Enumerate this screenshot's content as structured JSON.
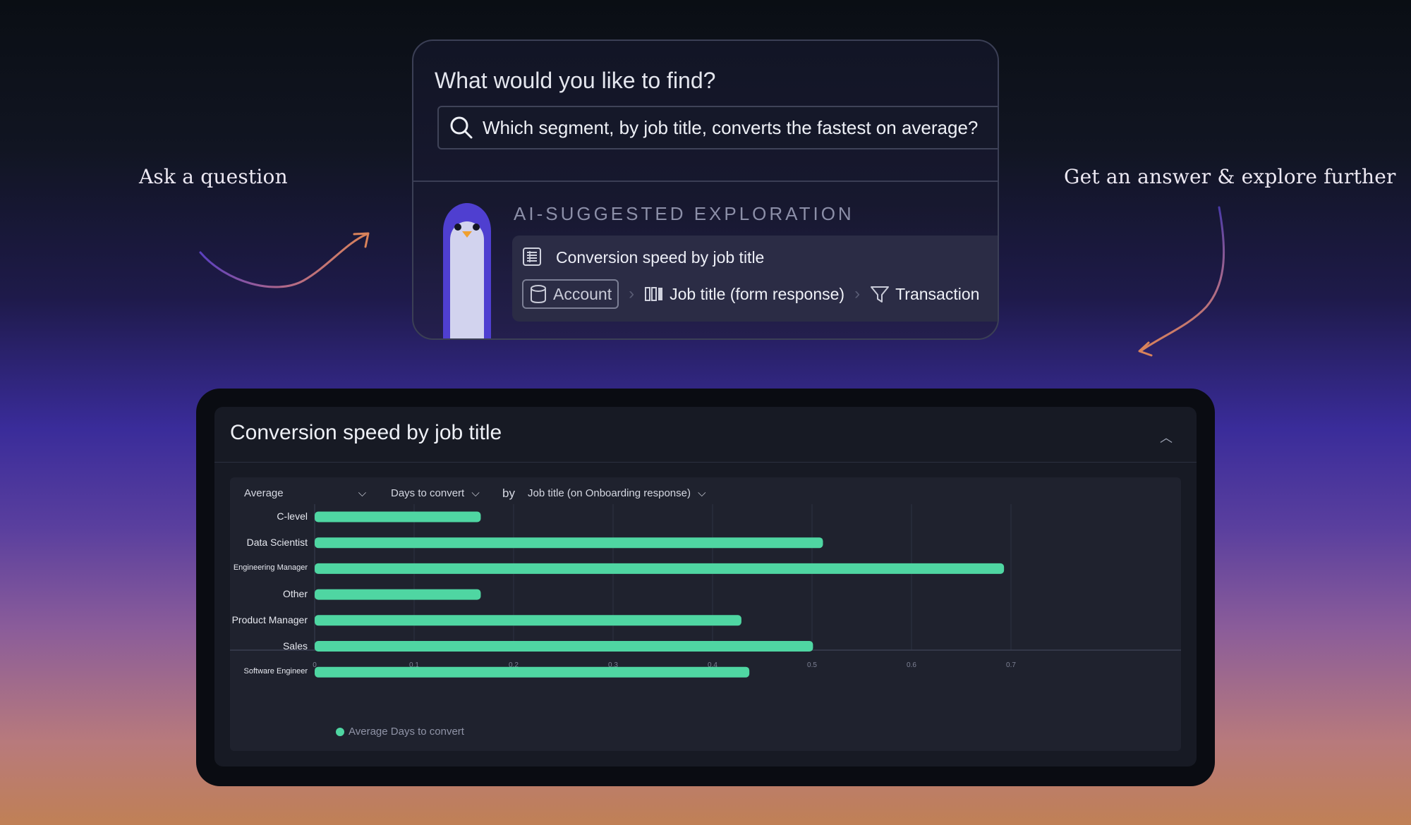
{
  "captions": {
    "left": "Ask a question",
    "right": "Get an answer & explore further"
  },
  "search": {
    "prompt": "What would you like to find?",
    "query": "Which segment, by job title, converts the fastest on average?"
  },
  "suggestion": {
    "section_label": "AI-SUGGESTED EXPLORATION",
    "title": "Conversion speed by job title",
    "chips": {
      "account": "Account",
      "job_title": "Job title (form response)",
      "transaction": "Transaction"
    }
  },
  "report": {
    "title": "Conversion speed by job title",
    "controls": {
      "aggregation": "Average",
      "metric": "Days to convert",
      "by": "by",
      "group_by": "Job title (on Onboarding response)"
    }
  },
  "colors": {
    "bar": "#4fd6a2",
    "accent_arrow": "#d9825a"
  },
  "chart_data": {
    "type": "bar",
    "orientation": "horizontal",
    "categories": [
      "C-level",
      "Data Scientist",
      "Engineering Manager",
      "Other",
      "Product Manager",
      "Sales",
      "Software Engineer"
    ],
    "series": [
      {
        "name": "Average Days to convert",
        "values": [
          0.167,
          0.511,
          0.693,
          0.167,
          0.429,
          0.501,
          0.437
        ]
      }
    ],
    "xlim": [
      0,
      0.7
    ],
    "xticks": [
      "0",
      "0.1",
      "0.2",
      "0.3",
      "0.4",
      "0.5",
      "0.6",
      "0.7"
    ],
    "grid": true,
    "legend": "bottom-left"
  }
}
